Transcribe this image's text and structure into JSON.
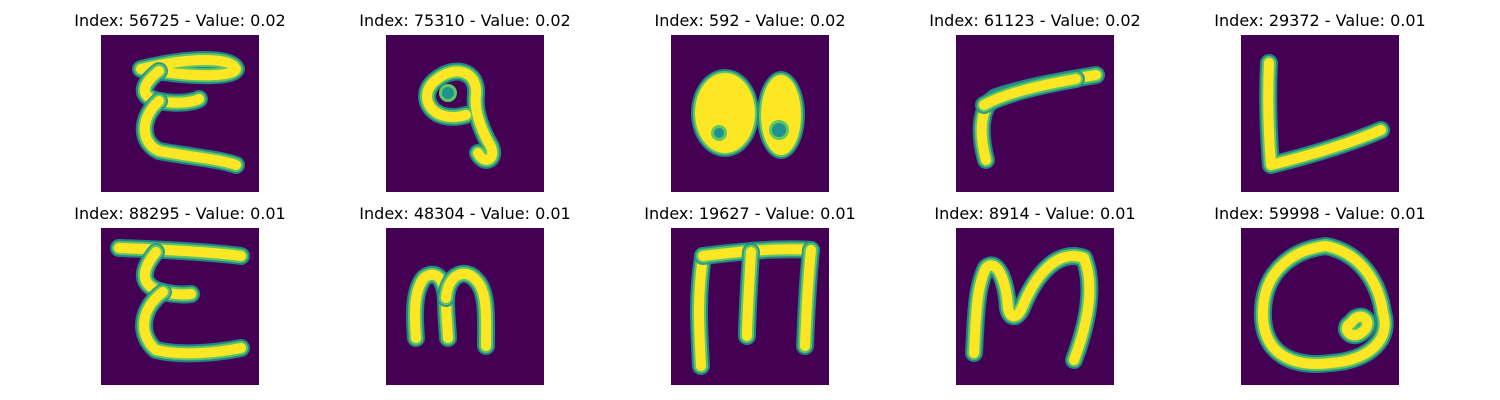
{
  "colors": {
    "background": "#440154",
    "stroke_edge": "#21918c",
    "stroke_mid": "#5ec962",
    "stroke_core": "#fde725"
  },
  "panels": [
    {
      "title": "Index: 56725 - Value: 0.02",
      "glyph": "E",
      "strokes": [
        "M40 34 C 90 22 130 22 135 34 C 132 42 95 42 55 36",
        "M58 36 C 40 50 38 62 58 66 C 80 70 95 66 98 64",
        "M58 66 C 38 84 40 108 58 116 C 90 122 118 124 135 130"
      ]
    },
    {
      "title": "Index: 75310 - Value: 0.02",
      "glyph": "9",
      "strokes": [
        "M80 80 C 45 90 30 60 50 45 C 68 30 92 35 90 60 C 88 75 95 95 105 112 C 110 125 98 130 92 118"
      ],
      "holes": [
        [
          62,
          58,
          6
        ]
      ]
    },
    {
      "title": "Index: 592 - Value: 0.02",
      "glyph": "00",
      "blobs": [
        [
          54,
          78,
          30,
          40
        ],
        [
          110,
          80,
          20,
          40
        ]
      ],
      "holes": [
        [
          48,
          98,
          5
        ],
        [
          108,
          95,
          7
        ]
      ]
    },
    {
      "title": "Index: 61123 - Value: 0.02",
      "glyph": "r",
      "strokes": [
        "M30 125 C 22 95 25 70 40 62 C 70 52 110 45 140 40",
        "M28 70 C 50 58 85 50 120 44"
      ]
    },
    {
      "title": "Index: 29372 - Value: 0.01",
      "glyph": "L",
      "strokes": [
        "M28 28 C 26 70 28 105 30 130 C 70 120 110 108 140 95"
      ]
    },
    {
      "title": "Index: 88295 - Value: 0.01",
      "glyph": "E",
      "strokes": [
        "M18 20 C 70 22 110 24 140 28",
        "M55 24 C 40 42 38 58 62 64 C 80 68 88 66 90 66",
        "M62 64 C 38 82 38 108 55 122 C 80 128 115 125 140 120"
      ]
    },
    {
      "title": "Index: 48304 - Value: 0.01",
      "glyph": "m",
      "strokes": [
        "M30 110 C 28 85 28 62 38 50 C 48 42 58 48 60 70 C 60 90 62 105 62 110",
        "M60 70 C 62 45 80 40 90 52 C 102 64 100 90 100 118"
      ]
    },
    {
      "title": "Index: 19627 - Value: 0.01",
      "glyph": "M",
      "strokes": [
        "M30 138 C 28 100 26 70 32 28",
        "M32 28 C 80 22 115 20 140 22",
        "M80 24 C 78 60 76 90 76 108",
        "M140 22 C 136 60 135 95 134 118"
      ]
    },
    {
      "title": "Index: 8914 - Value: 0.01",
      "glyph": "M",
      "strokes": [
        "M18 125 C 20 90 20 60 30 40 C 40 30 50 50 52 80 C 54 90 60 92 66 80 C 78 50 100 20 128 30 C 140 60 130 100 118 132"
      ]
    },
    {
      "title": "Index: 59998 - Value: 0.01",
      "glyph": "Q",
      "strokes": [
        "M85 18 C 50 22 20 45 22 90 C 24 125 50 140 90 135 C 130 132 150 110 142 85 C 138 55 120 25 85 18",
        "M110 95 C 120 80 135 95 120 105 C 110 112 100 100 110 95"
      ]
    }
  ]
}
